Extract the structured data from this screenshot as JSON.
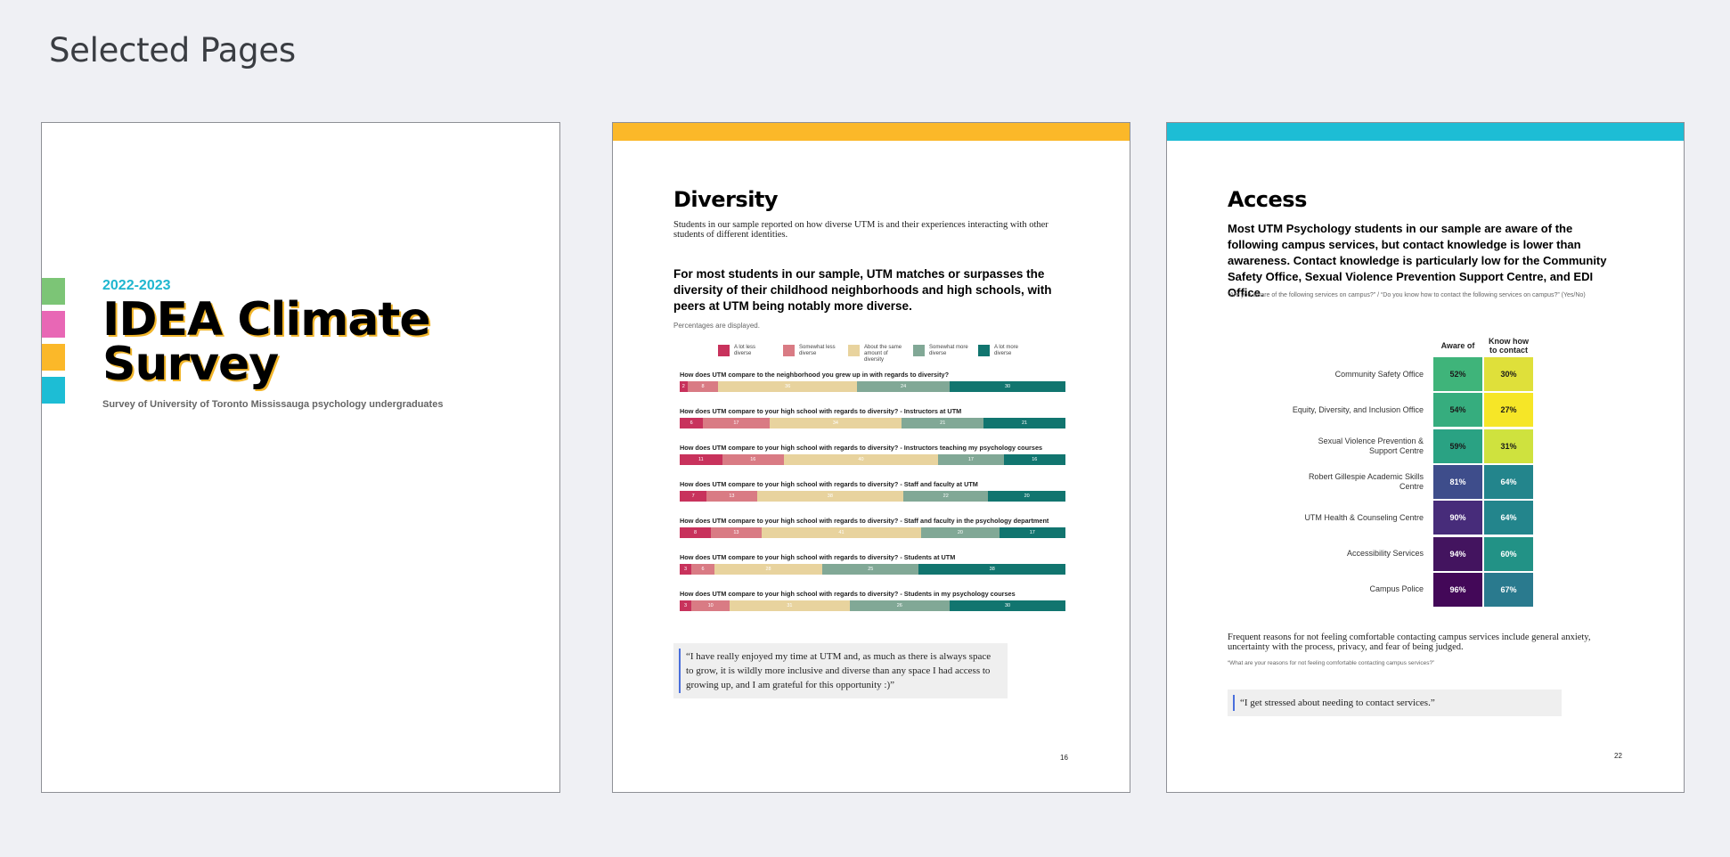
{
  "header": {
    "title": "Selected Pages"
  },
  "page1": {
    "year": "2022-2023",
    "title_line1": "IDEA Climate",
    "title_line2": "Survey",
    "subtitle": "Survey of University of Toronto Mississauga psychology undergraduates",
    "swatch_colors": [
      "#7cc576",
      "#e867b5",
      "#fbb829",
      "#1dbdd5"
    ]
  },
  "page2": {
    "accent": "#fbb829",
    "heading": "Diversity",
    "intro": "Students in our sample reported on how diverse UTM is and their experiences interacting with other students of different identities.",
    "key_finding": "For most students in our sample, UTM matches or surpasses the diversity of their childhood neighborhoods and high schools, with peers at UTM being notably more diverse.",
    "note": "Percentages are displayed.",
    "chart_data": {
      "type": "bar",
      "stacked": true,
      "orientation": "horizontal",
      "legend": [
        "A lot less diverse",
        "Somewhat less diverse",
        "About the same amount of diversity",
        "Somewhat more diverse",
        "A lot more diverse"
      ],
      "colors": [
        "#c8325c",
        "#d97b84",
        "#e8d39e",
        "#81a896",
        "#11756f"
      ],
      "categories": [
        "How does UTM compare to the neighborhood you grew up in with regards to diversity?",
        "How does UTM compare to your high school with regards to diversity? - Instructors at UTM",
        "How does UTM compare to your high school with regards to diversity? - Instructors teaching my psychology courses",
        "How does UTM compare to your high school with regards to diversity? - Staff and faculty at UTM",
        "How does UTM compare to your high school with regards to diversity? - Staff and faculty in the psychology department",
        "How does UTM compare to your high school with regards to diversity? - Students at UTM",
        "How does UTM compare to your high school with regards to diversity? - Students in my psychology courses"
      ],
      "series": [
        {
          "name": "A lot less diverse",
          "values": [
            2,
            6,
            11,
            7,
            8,
            3,
            3
          ]
        },
        {
          "name": "Somewhat less diverse",
          "values": [
            8,
            17,
            16,
            13,
            13,
            6,
            10
          ]
        },
        {
          "name": "About the same amount of diversity",
          "values": [
            36,
            34,
            40,
            38,
            41,
            28,
            31
          ]
        },
        {
          "name": "Somewhat more diverse",
          "values": [
            24,
            21,
            17,
            22,
            20,
            25,
            26
          ]
        },
        {
          "name": "A lot more diverse",
          "values": [
            30,
            21,
            16,
            20,
            17,
            38,
            30
          ]
        }
      ]
    },
    "quote": "“I have really enjoyed my time at UTM and, as much as there is always space to grow, it is wildly more inclusive and diverse than any space I had access to growing up, and I am grateful for this opportunity :)”",
    "page_number": "16"
  },
  "page3": {
    "accent": "#1dbdd5",
    "heading": "Access",
    "key_finding": "Most UTM Psychology students in our sample are aware of the following campus services, but contact knowledge is lower than awareness. Contact knowledge is particularly low for the Community Safety Office, Sexual Violence Prevention Support Centre, and EDI Office.",
    "note": "“Are you aware of the following services on campus?” / “Do you know how to contact the following services on campus?” (Yes/No)",
    "chart_data": {
      "type": "heatmap",
      "columns": [
        "Aware of",
        "Know how to contact"
      ],
      "rows": [
        "Community Safety Office",
        "Equity, Diversity, and Inclusion Office",
        "Sexual Violence Prevention & Support Centre",
        "Robert Gillespie Academic Skills Centre",
        "UTM Health & Counseling Centre",
        "Accessibility Services",
        "Campus Police"
      ],
      "values": [
        [
          52,
          30
        ],
        [
          54,
          27
        ],
        [
          59,
          31
        ],
        [
          81,
          64
        ],
        [
          90,
          64
        ],
        [
          94,
          60
        ],
        [
          96,
          67
        ]
      ],
      "labels": [
        [
          "52%",
          "30%"
        ],
        [
          "54%",
          "27%"
        ],
        [
          "59%",
          "31%"
        ],
        [
          "81%",
          "64%"
        ],
        [
          "90%",
          "64%"
        ],
        [
          "94%",
          "60%"
        ],
        [
          "96%",
          "67%"
        ]
      ],
      "colors": [
        [
          "#3fb47a",
          "#dfe03a"
        ],
        [
          "#36ad7e",
          "#f6e627"
        ],
        [
          "#2aa283",
          "#cfe23e"
        ],
        [
          "#3e4d8b",
          "#23858c"
        ],
        [
          "#472c7a",
          "#23858c"
        ],
        [
          "#43145f",
          "#229286"
        ],
        [
          "#430858",
          "#2a7a8e"
        ]
      ],
      "text_colors": [
        [
          "#1a1a1a",
          "#1a1a1a"
        ],
        [
          "#1a1a1a",
          "#1a1a1a"
        ],
        [
          "#1a1a1a",
          "#1a1a1a"
        ],
        [
          "#ffffff",
          "#ffffff"
        ],
        [
          "#ffffff",
          "#ffffff"
        ],
        [
          "#ffffff",
          "#ffffff"
        ],
        [
          "#ffffff",
          "#ffffff"
        ]
      ]
    },
    "reasons": "Frequent reasons for not feeling comfortable contacting campus services include general anxiety, uncertainty with the process, privacy, and fear of being judged.",
    "reasons_note": "“What are your reasons for not feeling comfortable contacting campus services?”",
    "quote": "“I get stressed about needing to contact services.”",
    "page_number": "22"
  }
}
